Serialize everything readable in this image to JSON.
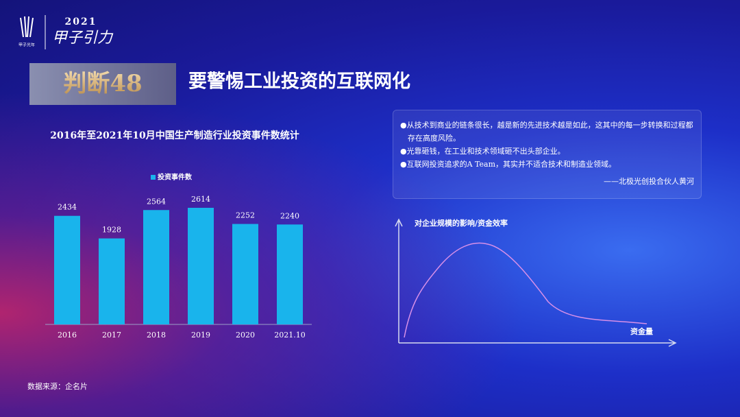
{
  "logo": {
    "brand": "甲子光年",
    "year": "2021",
    "event": "甲子引力"
  },
  "header": {
    "tag": "判断48",
    "title": "要警惕工业投资的互联网化"
  },
  "chart_data": {
    "type": "bar",
    "title": "2016年至2021年10月中国生产制造行业投资事件数统计",
    "categories": [
      "2016",
      "2017",
      "2018",
      "2019",
      "2020",
      "2021.10"
    ],
    "series": [
      {
        "name": "投资事件数",
        "color": "#19b4ec",
        "values": [
          2434,
          1928,
          2564,
          2614,
          2252,
          2240
        ]
      }
    ]
  },
  "quote": {
    "points": [
      "●从技术到商业的链条很长，越是新的先进技术越是如此，这其中的每一步转换和过程都存在高度风险。",
      "●光靠砸钱，在工业和技术领域砸不出头部企业。",
      "●互联网投资追求的A Team，其实并不适合技术和制造业领域。"
    ],
    "author": "——北极光创投合伙人黄河"
  },
  "diagram": {
    "y_label": "对企业规模的影响/资金效率",
    "x_label": "资金量"
  },
  "source": "数据来源：企名片"
}
